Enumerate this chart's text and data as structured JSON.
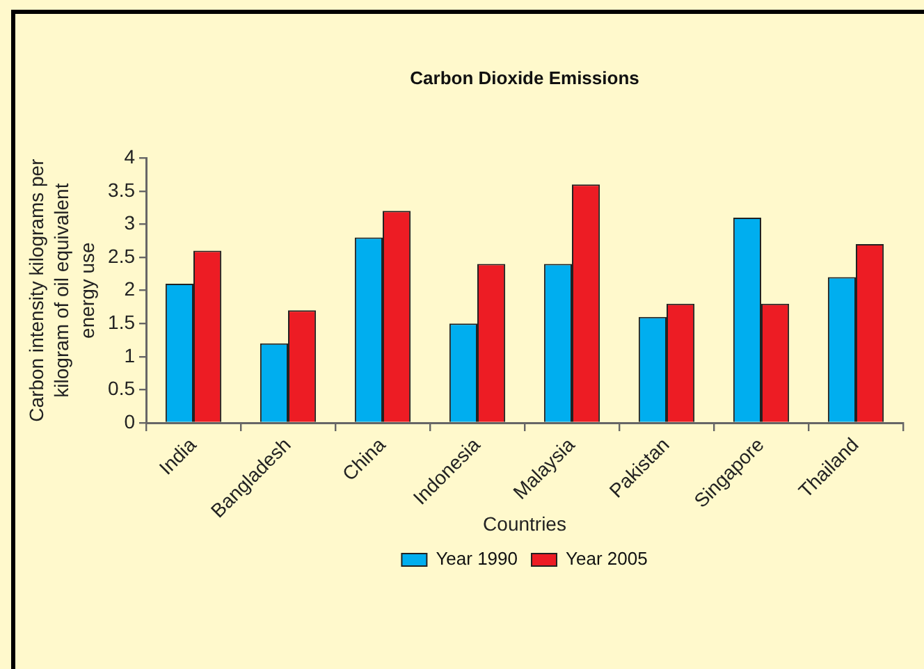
{
  "chart_data": {
    "type": "bar",
    "title": "Carbon Dioxide Emissions",
    "xlabel": "Countries",
    "ylabel": "Carbon intensity kilograms per kilogram of oil equivalent energy use",
    "categories": [
      "India",
      "Bangladesh",
      "China",
      "Indonesia",
      "Malaysia",
      "Pakistan",
      "Singapore",
      "Thailand"
    ],
    "series": [
      {
        "name": "Year 1990",
        "color": "#00aeef",
        "values": [
          2.1,
          1.2,
          2.8,
          1.5,
          2.4,
          1.6,
          3.1,
          2.2
        ]
      },
      {
        "name": "Year 2005",
        "color": "#ed1c24",
        "values": [
          2.6,
          1.7,
          3.2,
          2.4,
          3.6,
          1.8,
          1.8,
          2.7
        ]
      }
    ],
    "ylim": [
      0,
      4
    ],
    "yticks": [
      0,
      0.5,
      1,
      1.5,
      2,
      2.5,
      3,
      3.5,
      4
    ],
    "grid": false,
    "legend": "bottom"
  }
}
